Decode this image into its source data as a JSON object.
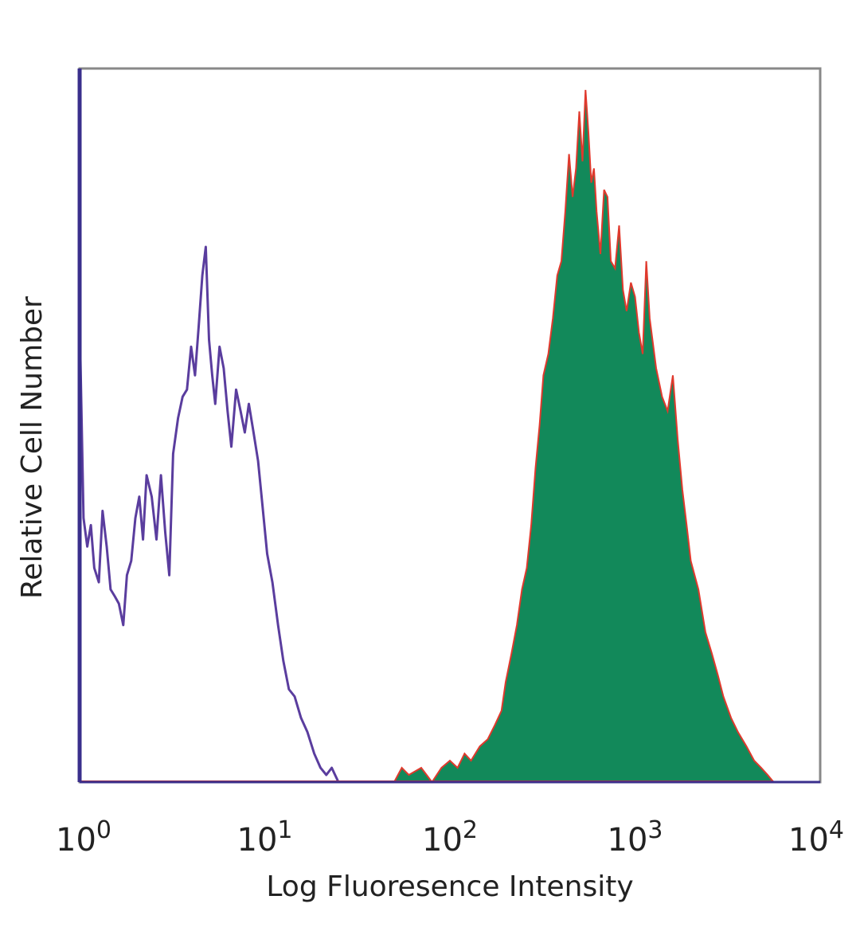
{
  "chart_data": {
    "type": "area",
    "xlabel": "Log Fluoresence Intensity",
    "ylabel": "Relative Cell Number",
    "xscale": "log",
    "xlim": [
      1,
      10000
    ],
    "ylim": [
      0,
      1
    ],
    "grid": false,
    "legend": "none",
    "xticks": [
      {
        "base": "10",
        "exp": "0"
      },
      {
        "base": "10",
        "exp": "1"
      },
      {
        "base": "10",
        "exp": "2"
      },
      {
        "base": "10",
        "exp": "3"
      },
      {
        "base": "10",
        "exp": "4"
      }
    ],
    "series": [
      {
        "style": "outline",
        "color": "#5a3d9e",
        "x": [
          1.0,
          1.05,
          1.1,
          1.15,
          1.2,
          1.27,
          1.33,
          1.4,
          1.47,
          1.55,
          1.63,
          1.72,
          1.8,
          1.9,
          2.0,
          2.1,
          2.2,
          2.3,
          2.45,
          2.6,
          2.75,
          2.9,
          3.05,
          3.2,
          3.4,
          3.6,
          3.8,
          4.0,
          4.2,
          4.4,
          4.6,
          4.8,
          5.0,
          5.2,
          5.4,
          5.7,
          6.0,
          6.3,
          6.6,
          7.0,
          7.4,
          7.8,
          8.2,
          8.7,
          9.2,
          9.7,
          10.3,
          11.0,
          11.8,
          12.6,
          13.5,
          14.5,
          15.7,
          17.0,
          18.5,
          20.0,
          21.5,
          23.0,
          25.0
        ],
        "y": [
          0.65,
          0.37,
          0.33,
          0.36,
          0.3,
          0.28,
          0.38,
          0.33,
          0.27,
          0.26,
          0.25,
          0.22,
          0.29,
          0.31,
          0.37,
          0.4,
          0.34,
          0.43,
          0.4,
          0.34,
          0.43,
          0.35,
          0.29,
          0.46,
          0.51,
          0.54,
          0.55,
          0.61,
          0.57,
          0.64,
          0.71,
          0.75,
          0.62,
          0.57,
          0.53,
          0.61,
          0.58,
          0.52,
          0.47,
          0.55,
          0.52,
          0.49,
          0.53,
          0.49,
          0.45,
          0.39,
          0.32,
          0.28,
          0.22,
          0.17,
          0.13,
          0.12,
          0.09,
          0.07,
          0.04,
          0.02,
          0.01,
          0.02,
          0.0
        ]
      },
      {
        "style": "filled",
        "fill": "#12895a",
        "edge": "#e0392d",
        "x": [
          50,
          55,
          60,
          70,
          80,
          90,
          100,
          110,
          120,
          130,
          145,
          160,
          175,
          190,
          200,
          215,
          230,
          245,
          260,
          275,
          290,
          305,
          320,
          340,
          360,
          380,
          400,
          420,
          440,
          460,
          480,
          500,
          520,
          540,
          560,
          580,
          600,
          620,
          650,
          680,
          710,
          740,
          780,
          820,
          860,
          900,
          950,
          1000,
          1050,
          1100,
          1150,
          1200,
          1300,
          1400,
          1500,
          1600,
          1700,
          1800,
          1900,
          2000,
          2200,
          2400,
          2600,
          2800,
          3000,
          3300,
          3600,
          4000,
          4400,
          4800,
          5200,
          5600
        ],
        "y": [
          0.0,
          0.02,
          0.01,
          0.02,
          0.0,
          0.02,
          0.03,
          0.02,
          0.04,
          0.03,
          0.05,
          0.06,
          0.08,
          0.1,
          0.14,
          0.18,
          0.22,
          0.27,
          0.3,
          0.36,
          0.44,
          0.5,
          0.57,
          0.6,
          0.65,
          0.71,
          0.73,
          0.8,
          0.88,
          0.82,
          0.86,
          0.94,
          0.87,
          0.97,
          0.91,
          0.84,
          0.86,
          0.8,
          0.74,
          0.83,
          0.82,
          0.73,
          0.72,
          0.78,
          0.69,
          0.66,
          0.7,
          0.68,
          0.63,
          0.6,
          0.73,
          0.65,
          0.58,
          0.54,
          0.52,
          0.57,
          0.48,
          0.41,
          0.36,
          0.31,
          0.27,
          0.21,
          0.18,
          0.15,
          0.12,
          0.09,
          0.07,
          0.05,
          0.03,
          0.02,
          0.01,
          0.0
        ]
      }
    ]
  }
}
